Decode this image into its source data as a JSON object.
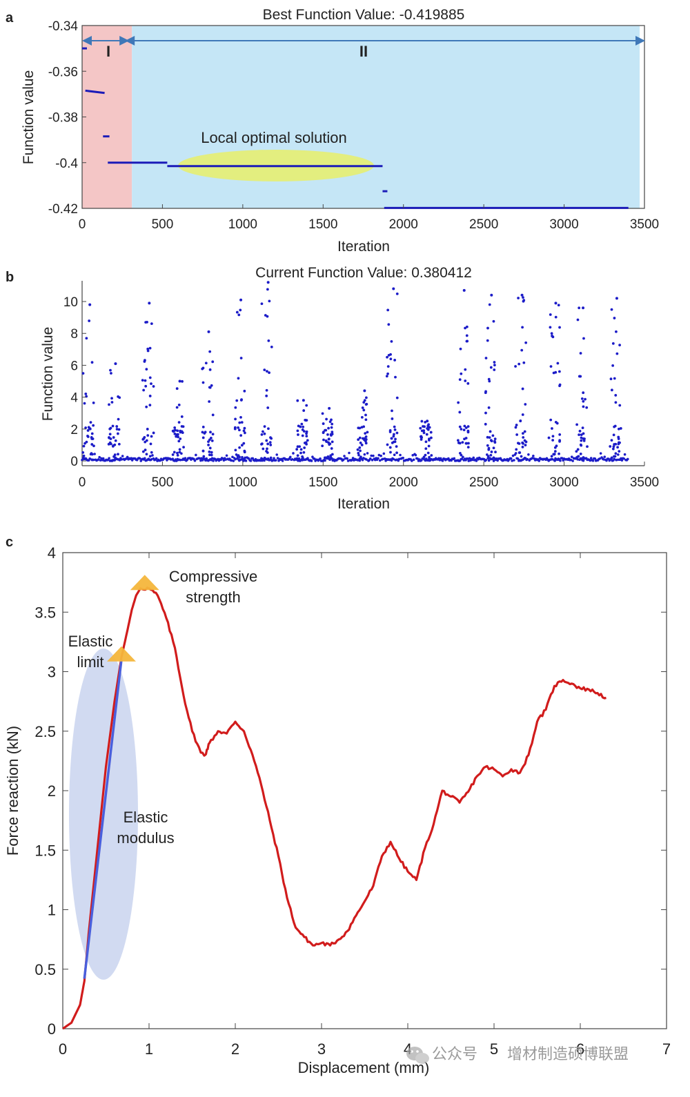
{
  "panels": {
    "a": "a",
    "b": "b",
    "c": "c"
  },
  "watermark": {
    "prefix": "公众号",
    "name": "增材制造硕博联盟"
  },
  "annotations": {
    "a_region_I": "I",
    "a_region_II": "II",
    "a_local_optimal": "Local optimal solution",
    "c_compressive_1": "Compressive",
    "c_compressive_2": "strength",
    "c_elastic_limit_1": "Elastic",
    "c_elastic_limit_2": "limit",
    "c_elastic_modulus_1": "Elastic",
    "c_elastic_modulus_2": "modulus"
  },
  "colors": {
    "region_I": "#f4c6c6",
    "region_II": "#c5e6f6",
    "best_line": "#1b1bb8",
    "scatter": "#1c1cc8",
    "force_curve": "#d11c1c",
    "elastic_line": "#4a5fdc",
    "ellipse_local": "#e8ee6a",
    "ellipse_modulus": "#c9d3ee",
    "marker": "#f4b63c",
    "arrow": "#3f78b8"
  },
  "chart_data": [
    {
      "type": "line",
      "panel": "a",
      "title": "Best Function Value: -0.419885",
      "xlabel": "Iteration",
      "ylabel": "Function value",
      "xlim": [
        0,
        3500
      ],
      "ylim": [
        -0.42,
        -0.34
      ],
      "xticks": [
        "0",
        "500",
        "1000",
        "1500",
        "2000",
        "2500",
        "3000",
        "3500"
      ],
      "yticks": [
        "-0.42",
        "-0.4",
        "-0.38",
        "-0.36",
        "-0.34"
      ],
      "regions": [
        {
          "label": "I",
          "x": [
            0,
            310
          ]
        },
        {
          "label": "II",
          "x": [
            310,
            3470
          ]
        }
      ],
      "series": [
        {
          "segments": [
            [
              [
                0,
                -0.35
              ],
              [
                30,
                -0.35
              ]
            ],
            [
              [
                20,
                -0.3685
              ],
              [
                140,
                -0.3695
              ]
            ],
            [
              [
                130,
                -0.3885
              ],
              [
                170,
                -0.3885
              ]
            ],
            [
              [
                160,
                -0.4
              ],
              [
                530,
                -0.4
              ]
            ],
            [
              [
                530,
                -0.4015
              ],
              [
                1870,
                -0.4015
              ]
            ],
            [
              [
                1870,
                -0.4125
              ],
              [
                1900,
                -0.4125
              ]
            ],
            [
              [
                1880,
                -0.4198
              ],
              [
                3400,
                -0.4198
              ]
            ]
          ]
        }
      ]
    },
    {
      "type": "scatter",
      "panel": "b",
      "title": "Current Function Value: 0.380412",
      "xlabel": "Iteration",
      "ylabel": "Function value",
      "xlim": [
        0,
        3500
      ],
      "ylim": [
        -0.3,
        11.3
      ],
      "xticks": [
        "0",
        "500",
        "1000",
        "1500",
        "2000",
        "2500",
        "3000",
        "3500"
      ],
      "yticks": [
        "0",
        "2",
        "4",
        "6",
        "8",
        "10"
      ],
      "points_count": 3400,
      "spike_centers": [
        40,
        200,
        410,
        600,
        780,
        980,
        1150,
        1370,
        1530,
        1750,
        1930,
        2140,
        2370,
        2540,
        2730,
        2940,
        3110,
        3320
      ],
      "peaks": [
        9.8,
        6.1,
        9.9,
        5.0,
        8.1,
        10.1,
        11.2,
        3.8,
        3.3,
        4.4,
        10.8,
        2.5,
        10.7,
        10.4,
        10.4,
        9.9,
        9.6,
        10.2
      ]
    },
    {
      "type": "line",
      "panel": "c",
      "xlabel": "Displacement (mm)",
      "ylabel": "Force reaction (kN)",
      "xlim": [
        0,
        7
      ],
      "ylim": [
        0,
        4
      ],
      "xticks": [
        "0",
        "1",
        "2",
        "3",
        "4",
        "5",
        "6",
        "7"
      ],
      "yticks": [
        "0",
        "0.5",
        "1",
        "1.5",
        "2",
        "2.5",
        "3",
        "3.5",
        "4"
      ],
      "series": [
        {
          "x": [
            0,
            0.1,
            0.2,
            0.25,
            0.3,
            0.4,
            0.5,
            0.6,
            0.68,
            0.75,
            0.8,
            0.85,
            0.9,
            1.0,
            1.1,
            1.2,
            1.3,
            1.4,
            1.5,
            1.6,
            1.65,
            1.7,
            1.8,
            1.9,
            2.0,
            2.1,
            2.2,
            2.3,
            2.4,
            2.5,
            2.6,
            2.7,
            2.8,
            2.9,
            3.0,
            3.1,
            3.2,
            3.3,
            3.4,
            3.5,
            3.6,
            3.7,
            3.8,
            3.9,
            4.0,
            4.1,
            4.2,
            4.3,
            4.4,
            4.5,
            4.6,
            4.7,
            4.8,
            4.9,
            5.0,
            5.1,
            5.2,
            5.3,
            5.4,
            5.5,
            5.6,
            5.7,
            5.8,
            5.9,
            6.0,
            6.1,
            6.2,
            6.3
          ],
          "y": [
            0,
            0.05,
            0.2,
            0.4,
            0.8,
            1.5,
            2.2,
            2.75,
            3.12,
            3.35,
            3.52,
            3.64,
            3.7,
            3.7,
            3.64,
            3.45,
            3.2,
            2.8,
            2.5,
            2.32,
            2.3,
            2.4,
            2.5,
            2.48,
            2.58,
            2.5,
            2.3,
            2.05,
            1.75,
            1.45,
            1.1,
            0.85,
            0.77,
            0.7,
            0.72,
            0.7,
            0.75,
            0.82,
            0.95,
            1.07,
            1.2,
            1.45,
            1.57,
            1.43,
            1.32,
            1.25,
            1.52,
            1.72,
            2.0,
            1.95,
            1.9,
            1.99,
            2.12,
            2.2,
            2.18,
            2.12,
            2.18,
            2.15,
            2.3,
            2.58,
            2.68,
            2.88,
            2.93,
            2.9,
            2.86,
            2.85,
            2.82,
            2.78
          ]
        }
      ],
      "elastic_line": {
        "x": [
          0.25,
          0.68
        ],
        "y": [
          0.42,
          3.1
        ]
      },
      "markers": [
        {
          "label": "Elastic limit",
          "x": 0.68,
          "y": 3.12
        },
        {
          "label": "Compressive strength",
          "x": 0.95,
          "y": 3.72
        }
      ]
    }
  ]
}
